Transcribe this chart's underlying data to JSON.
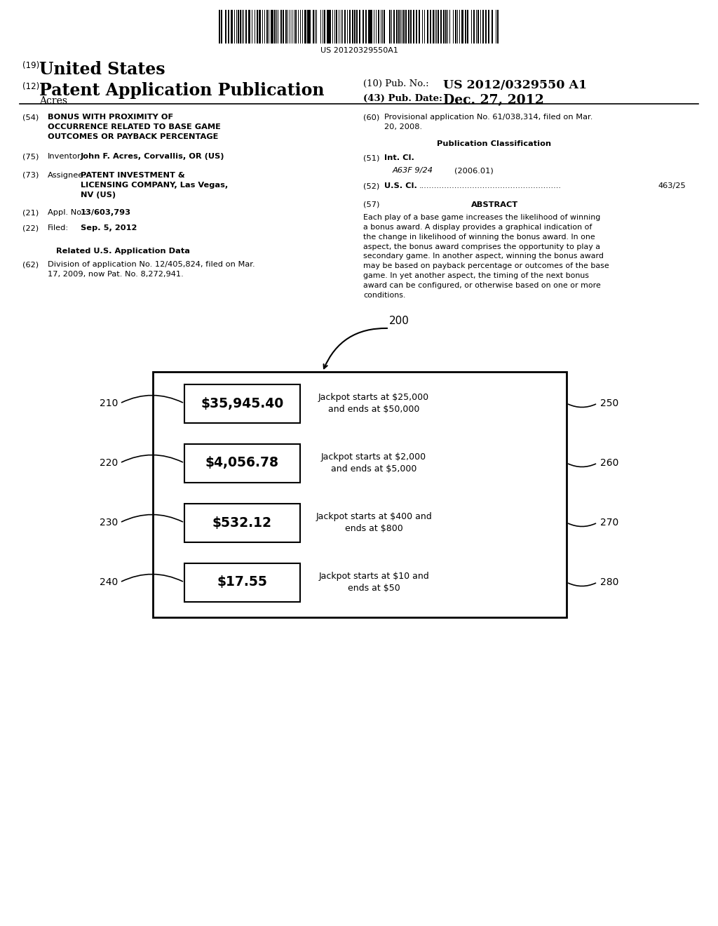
{
  "bg_color": "#ffffff",
  "barcode_text": "US 20120329550A1",
  "header": {
    "number_19": "(19)",
    "united_states": "United States",
    "number_12": "(12)",
    "patent_app": "Patent Application Publication",
    "acres": "Acres",
    "pub_no_label": "(10) Pub. No.:",
    "pub_no_val": "US 2012/0329550 A1",
    "pub_date_label": "(43) Pub. Date:",
    "pub_date_val": "Dec. 27, 2012"
  },
  "left_col": {
    "item54_label": "(54)",
    "item54_text": "BONUS WITH PROXIMITY OF\nOCCURRENCE RELATED TO BASE GAME\nOUTCOMES OR PAYBACK PERCENTAGE",
    "item75_label": "(75)",
    "item75_key": "Inventor:",
    "item75_val": "John F. Acres, Corvallis, OR (US)",
    "item73_label": "(73)",
    "item73_key": "Assignee:",
    "item73_val": "PATENT INVESTMENT &\nLICENSING COMPANY, Las Vegas,\nNV (US)",
    "item21_label": "(21)",
    "item21_key": "Appl. No.:",
    "item21_val": "13/603,793",
    "item22_label": "(22)",
    "item22_key": "Filed:",
    "item22_val": "Sep. 5, 2012",
    "related_title": "Related U.S. Application Data",
    "item62_label": "(62)",
    "item62_text": "Division of application No. 12/405,824, filed on Mar.\n17, 2009, now Pat. No. 8,272,941."
  },
  "right_col": {
    "item60_label": "(60)",
    "item60_text": "Provisional application No. 61/038,314, filed on Mar.\n20, 2008.",
    "pub_class_title": "Publication Classification",
    "item51_label": "(51)",
    "item51_key": "Int. Cl.",
    "item51_subkey": "A63F 9/24",
    "item51_subval": "(2006.01)",
    "item52_label": "(52)",
    "item52_key": "U.S. Cl.",
    "item52_val": "463/25",
    "item57_label": "(57)",
    "abstract_title": "ABSTRACT",
    "abstract_text": "Each play of a base game increases the likelihood of winning\na bonus award. A display provides a graphical indication of\nthe change in likelihood of winning the bonus award. In one\naspect, the bonus award comprises the opportunity to play a\nsecondary game. In another aspect, winning the bonus award\nmay be based on payback percentage or outcomes of the base\ngame. In yet another aspect, the timing of the next bonus\naward can be configured, or otherwise based on one or more\nconditions."
  },
  "diagram": {
    "label_200": "200",
    "rows": [
      {
        "label_left": "210",
        "value_text": "$35,945.40",
        "desc_text": "Jackpot starts at $25,000\nand ends at $50,000",
        "label_right": "250"
      },
      {
        "label_left": "220",
        "value_text": "$4,056.78",
        "desc_text": "Jackpot starts at $2,000\nand ends at $5,000",
        "label_right": "260"
      },
      {
        "label_left": "230",
        "value_text": "$532.12",
        "desc_text": "Jackpot starts at $400 and\nends at $800",
        "label_right": "270"
      },
      {
        "label_left": "240",
        "value_text": "$17.55",
        "desc_text": "Jackpot starts at $10 and\nends at $50",
        "label_right": "280"
      }
    ]
  }
}
